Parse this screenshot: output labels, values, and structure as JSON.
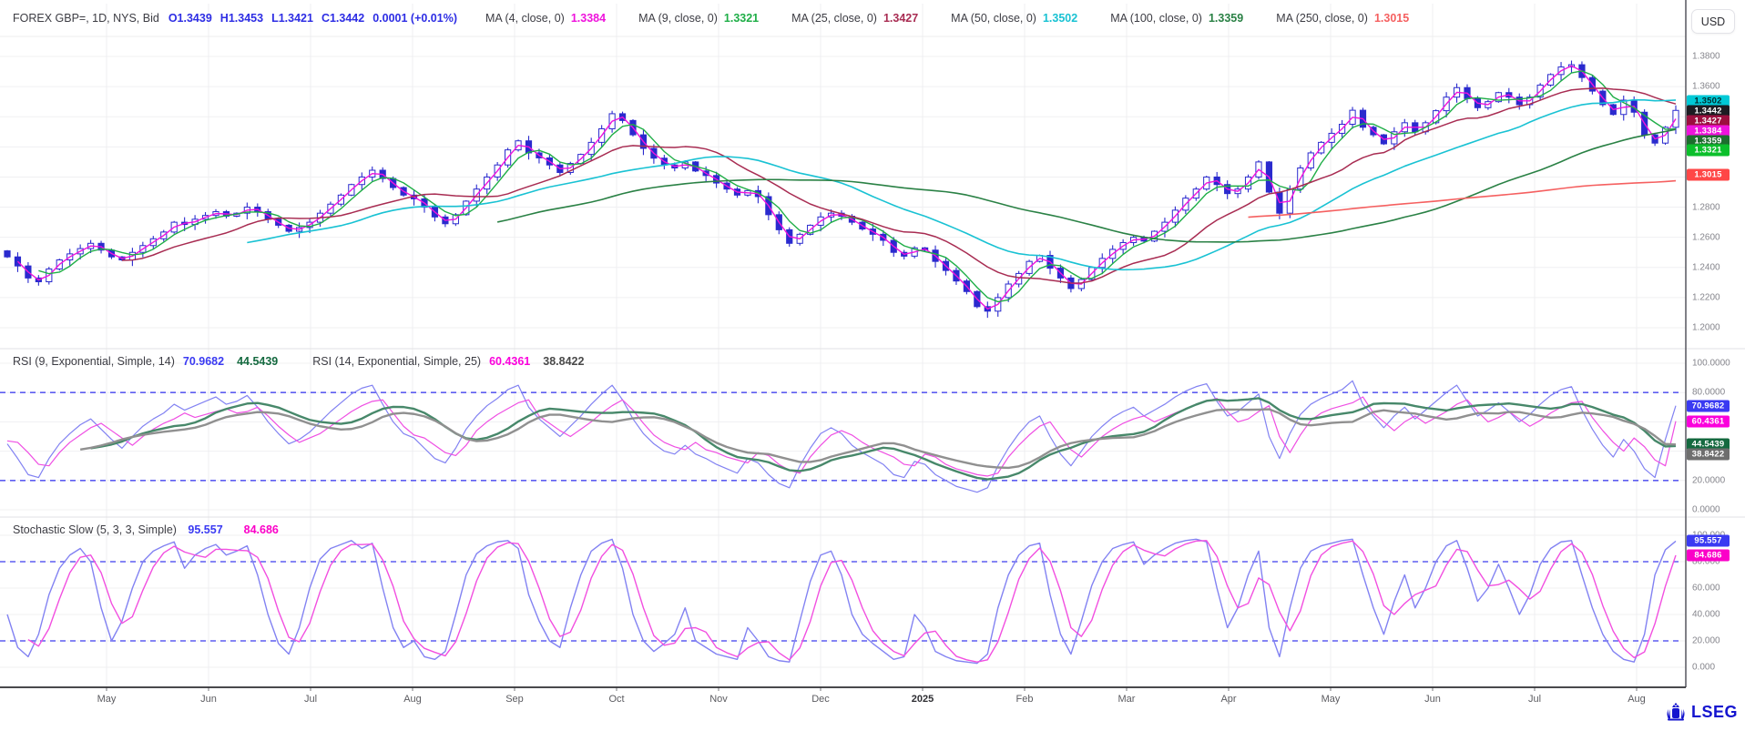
{
  "window": {
    "currency_button": "USD"
  },
  "logo": {
    "text": "LSEG"
  },
  "chart_data": [
    {
      "type": "candlestick",
      "symbol": "FOREX GBP=, 1D, NYS, Bid",
      "quote": [
        {
          "text": "O1.3439"
        },
        {
          "text": "H1.3453"
        },
        {
          "text": "L1.3421"
        },
        {
          "text": "C1.3442"
        },
        {
          "text": "0.0001 (+0.01%)"
        }
      ],
      "quote_color": "#2d2de4",
      "candle_color": "#2a2ace",
      "ylim": [
        1.195,
        1.385
      ],
      "wick_amp": 0.0048,
      "x_labels": [
        "May",
        "Jun",
        "Jul",
        "Aug",
        "Sep",
        "Oct",
        "Nov",
        "Dec",
        "2025",
        "Feb",
        "Mar",
        "Apr",
        "May",
        "Jun",
        "Jul",
        "Aug"
      ],
      "closes": [
        1.247,
        1.241,
        1.233,
        1.2305,
        1.239,
        1.245,
        1.249,
        1.2525,
        1.256,
        1.2515,
        1.247,
        1.245,
        1.25,
        1.2545,
        1.259,
        1.2635,
        1.27,
        1.2685,
        1.272,
        1.2745,
        1.277,
        1.274,
        1.276,
        1.28,
        1.277,
        1.272,
        1.268,
        1.264,
        1.2665,
        1.27,
        1.276,
        1.282,
        1.288,
        1.295,
        1.3,
        1.3045,
        1.299,
        1.293,
        1.288,
        1.2855,
        1.28,
        1.2735,
        1.269,
        1.275,
        1.284,
        1.292,
        1.3,
        1.308,
        1.318,
        1.324,
        1.316,
        1.3127,
        1.308,
        1.303,
        1.309,
        1.315,
        1.323,
        1.332,
        1.342,
        1.3375,
        1.328,
        1.319,
        1.3125,
        1.308,
        1.306,
        1.31,
        1.304,
        1.301,
        1.296,
        1.292,
        1.288,
        1.291,
        1.287,
        1.275,
        1.265,
        1.256,
        1.262,
        1.268,
        1.2735,
        1.276,
        1.274,
        1.27,
        1.2655,
        1.262,
        1.258,
        1.25,
        1.2475,
        1.253,
        1.2515,
        1.244,
        1.238,
        1.231,
        1.224,
        1.214,
        1.211,
        1.22,
        1.229,
        1.236,
        1.244,
        1.248,
        1.2395,
        1.233,
        1.226,
        1.232,
        1.24,
        1.246,
        1.252,
        1.2565,
        1.26,
        1.2575,
        1.264,
        1.27,
        1.278,
        1.286,
        1.292,
        1.3,
        1.295,
        1.289,
        1.292,
        1.3,
        1.31,
        1.29,
        1.276,
        1.292,
        1.306,
        1.316,
        1.323,
        1.329,
        1.335,
        1.3443,
        1.333,
        1.328,
        1.322,
        1.33,
        1.336,
        1.33,
        1.336,
        1.344,
        1.353,
        1.3593,
        1.352,
        1.346,
        1.35,
        1.356,
        1.353,
        1.348,
        1.353,
        1.361,
        1.368,
        1.373,
        1.3745,
        1.366,
        1.357,
        1.348,
        1.3415,
        1.351,
        1.343,
        1.328,
        1.3225,
        1.333,
        1.3442
      ],
      "mas": [
        {
          "label": "MA (4, close, 0)",
          "value": "1.3384",
          "color": "#ef13dc",
          "window": 2,
          "width": 1.4
        },
        {
          "label": "MA (9, close, 0)",
          "value": "1.3321",
          "color": "#1fae47",
          "window": 4,
          "width": 1.4
        },
        {
          "label": "MA (25, close, 0)",
          "value": "1.3427",
          "color": "#a82c52",
          "window": 12,
          "width": 1.5
        },
        {
          "label": "MA (50, close, 0)",
          "value": "1.3502",
          "color": "#19c2d3",
          "window": 24,
          "width": 1.6
        },
        {
          "label": "MA (100, close, 0)",
          "value": "1.3359",
          "color": "#2a8145",
          "window": 48,
          "width": 1.6
        },
        {
          "label": "MA (250, close, 0)",
          "value": "1.3015",
          "color": "#f56060",
          "window": 120,
          "width": 1.6
        }
      ],
      "y_ticks": [
        {
          "text": "1.3800",
          "value": 1.38
        },
        {
          "text": "1.3600",
          "value": 1.36
        },
        {
          "text": "1.2800",
          "value": 1.28
        },
        {
          "text": "1.2600",
          "value": 1.26
        },
        {
          "text": "1.2400",
          "value": 1.24
        },
        {
          "text": "1.2200",
          "value": 1.22
        },
        {
          "text": "1.2000",
          "value": 1.2
        }
      ],
      "grid_levels": [
        1.38,
        1.36,
        1.34,
        1.32,
        1.3,
        1.28,
        1.26,
        1.24,
        1.22,
        1.2
      ],
      "badges": [
        {
          "text": "1.3502",
          "value": 1.3502,
          "bg": "#00c9d6",
          "fg": "#00282b"
        },
        {
          "text": "1.3442",
          "value": 1.3442,
          "bg": "#1c1c22",
          "fg": "#ffffff"
        },
        {
          "text": "1.3427",
          "value": 1.3427,
          "bg": "#9c0f3f",
          "fg": "#ffffff"
        },
        {
          "text": "1.3384",
          "value": 1.3384,
          "bg": "#ef13dc",
          "fg": "#ffffff"
        },
        {
          "text": "1.3359",
          "value": 1.3359,
          "bg": "#1d6e2e",
          "fg": "#ffffff"
        },
        {
          "text": "1.3321",
          "value": 1.3321,
          "bg": "#0bbf2b",
          "fg": "#ffffff"
        },
        {
          "text": "1.3015",
          "value": 1.3015,
          "bg": "#ff4747",
          "fg": "#ffffff"
        }
      ]
    },
    {
      "type": "line",
      "name": "rsi-panel",
      "ylim": [
        0,
        100
      ],
      "thresholds": [
        80,
        20
      ],
      "grid_levels": [
        100,
        80,
        60,
        40,
        20,
        0
      ],
      "groups": [
        {
          "label": "RSI (9, Exponential, Simple, 14)",
          "values": [
            {
              "text": "70.9682",
              "color": "#3a3af2"
            },
            {
              "text": "44.5439",
              "color": "#14693f"
            }
          ]
        },
        {
          "label": "RSI (14, Exponential, Simple, 25)",
          "values": [
            {
              "text": "60.4361",
              "color": "#fb00dc"
            },
            {
              "text": "38.8422",
              "color": "#4a4a4a"
            }
          ]
        }
      ],
      "y_ticks": [
        {
          "text": "100.0000",
          "value": 100
        },
        {
          "text": "80.0000",
          "value": 80
        },
        {
          "text": "20.0000",
          "value": 20
        },
        {
          "text": "0.0000",
          "value": 0
        }
      ],
      "badges": [
        {
          "text": "70.9682",
          "value": 70.9682,
          "bg": "#3a3af2",
          "fg": "#ffffff"
        },
        {
          "text": "60.4361",
          "value": 60.4361,
          "bg": "#fb00dc",
          "fg": "#ffffff"
        },
        {
          "text": "44.5439",
          "value": 44.5439,
          "bg": "#14693f",
          "fg": "#ffffff"
        },
        {
          "text": "38.8422",
          "value": 38.8422,
          "bg": "#6e6e6e",
          "fg": "#ffffff"
        }
      ],
      "series": [
        {
          "name": "RSI (9)",
          "color": "#8282f2",
          "width": 1.2,
          "values": [
            45,
            35,
            24,
            22,
            35,
            45,
            52,
            58,
            62,
            55,
            48,
            42,
            50,
            57,
            62,
            66,
            72,
            68,
            71,
            74,
            77,
            72,
            74,
            78,
            70,
            60,
            52,
            45,
            48,
            53,
            60,
            67,
            73,
            79,
            83,
            85,
            72,
            60,
            52,
            49,
            42,
            35,
            32,
            42,
            55,
            64,
            71,
            76,
            82,
            85,
            70,
            62,
            56,
            50,
            57,
            64,
            72,
            79,
            85,
            75,
            62,
            52,
            45,
            40,
            38,
            44,
            38,
            35,
            31,
            28,
            25,
            35,
            32,
            24,
            18,
            15,
            30,
            42,
            52,
            56,
            52,
            44,
            39,
            35,
            31,
            24,
            22,
            33,
            31,
            24,
            20,
            16,
            14,
            12,
            15,
            30,
            42,
            52,
            60,
            64,
            50,
            38,
            30,
            40,
            50,
            57,
            63,
            67,
            70,
            64,
            68,
            72,
            77,
            81,
            84,
            86,
            74,
            64,
            67,
            73,
            79,
            50,
            35,
            52,
            65,
            72,
            76,
            79,
            82,
            88,
            72,
            64,
            56,
            64,
            70,
            62,
            68,
            74,
            80,
            85,
            74,
            64,
            68,
            73,
            67,
            60,
            65,
            72,
            78,
            82,
            84,
            68,
            55,
            44,
            36,
            48,
            40,
            28,
            22,
            48,
            70.97
          ]
        },
        {
          "name": "RSI (14)",
          "color": "#ef4fe3",
          "width": 1.2,
          "values": [
            47,
            46,
            39,
            31,
            30,
            39,
            46,
            51,
            56,
            59,
            54,
            49,
            44,
            50,
            55,
            59,
            62,
            66,
            63,
            65,
            67,
            69,
            66,
            67,
            70,
            64,
            57,
            51,
            46,
            49,
            52,
            57,
            62,
            67,
            71,
            74,
            75,
            66,
            57,
            51,
            49,
            44,
            39,
            37,
            44,
            54,
            60,
            65,
            69,
            73,
            75,
            64,
            59,
            54,
            50,
            55,
            60,
            66,
            71,
            75,
            68,
            59,
            51,
            46,
            43,
            41,
            46,
            41,
            39,
            36,
            34,
            32,
            39,
            37,
            31,
            27,
            25,
            36,
            44,
            51,
            54,
            51,
            46,
            42,
            39,
            36,
            31,
            30,
            38,
            36,
            31,
            28,
            26,
            24,
            23,
            25,
            36,
            44,
            51,
            57,
            60,
            50,
            41,
            36,
            43,
            50,
            55,
            59,
            62,
            64,
            60,
            63,
            66,
            69,
            72,
            74,
            76,
            67,
            60,
            62,
            67,
            71,
            50,
            39,
            51,
            61,
            66,
            69,
            71,
            73,
            77,
            66,
            60,
            54,
            60,
            64,
            59,
            63,
            67,
            72,
            75,
            67,
            60,
            63,
            67,
            62,
            57,
            61,
            66,
            70,
            73,
            74,
            63,
            54,
            46,
            40,
            49,
            43,
            34,
            30,
            60.44
          ]
        },
        {
          "name": "RSI (9) average",
          "color": "#47886a",
          "width": 2.4,
          "sma_of": 0,
          "window": 9
        },
        {
          "name": "RSI (14) average",
          "color": "#909090",
          "width": 2.4,
          "sma_of": 1,
          "window": 8
        }
      ]
    },
    {
      "type": "line",
      "name": "stochastic-panel",
      "label": "Stochastic Slow (5, 3, 3, Simple)",
      "values": [
        {
          "text": "95.557",
          "color": "#3a3af2"
        },
        {
          "text": "84.686",
          "color": "#fb00c8"
        }
      ],
      "ylim": [
        0,
        100
      ],
      "thresholds": [
        80,
        20
      ],
      "grid_levels": [
        100,
        80,
        60,
        40,
        20,
        0
      ],
      "y_ticks": [
        {
          "text": "100.000",
          "value": 100
        },
        {
          "text": "80.000",
          "value": 80
        },
        {
          "text": "60.000",
          "value": 60
        },
        {
          "text": "40.000",
          "value": 40
        },
        {
          "text": "20.000",
          "value": 20
        },
        {
          "text": "0.000",
          "value": 0
        }
      ],
      "badges": [
        {
          "text": "95.557",
          "value": 95.557,
          "bg": "#3a3af2",
          "fg": "#ffffff"
        },
        {
          "text": "84.686",
          "value": 84.686,
          "bg": "#fb00c8",
          "fg": "#ffffff"
        }
      ],
      "series": [
        {
          "name": "%K",
          "color": "#8282f2",
          "width": 1.4,
          "values": [
            40,
            15,
            8,
            25,
            55,
            75,
            85,
            90,
            80,
            45,
            20,
            35,
            60,
            80,
            88,
            92,
            95,
            75,
            85,
            90,
            93,
            85,
            88,
            92,
            70,
            40,
            18,
            10,
            30,
            60,
            82,
            90,
            93,
            96,
            90,
            94,
            60,
            30,
            15,
            20,
            8,
            6,
            12,
            40,
            70,
            86,
            92,
            95,
            96,
            90,
            55,
            35,
            20,
            15,
            45,
            70,
            88,
            94,
            97,
            75,
            40,
            20,
            12,
            18,
            25,
            45,
            20,
            15,
            10,
            8,
            6,
            30,
            20,
            8,
            5,
            4,
            35,
            65,
            85,
            88,
            70,
            40,
            25,
            18,
            12,
            6,
            8,
            40,
            30,
            12,
            8,
            5,
            4,
            3,
            10,
            45,
            70,
            85,
            92,
            94,
            55,
            25,
            10,
            35,
            62,
            80,
            90,
            93,
            95,
            78,
            85,
            90,
            94,
            96,
            97,
            95,
            60,
            30,
            45,
            70,
            88,
            30,
            8,
            45,
            75,
            88,
            92,
            94,
            96,
            97,
            70,
            45,
            25,
            50,
            70,
            45,
            60,
            80,
            92,
            96,
            75,
            50,
            60,
            78,
            60,
            40,
            55,
            78,
            90,
            95,
            96,
            70,
            45,
            25,
            12,
            6,
            4,
            25,
            70,
            89,
            95.56
          ]
        },
        {
          "name": "%D",
          "color": "#f24fe0",
          "width": 1.4,
          "sma_of": 0,
          "window": 3
        }
      ]
    }
  ]
}
